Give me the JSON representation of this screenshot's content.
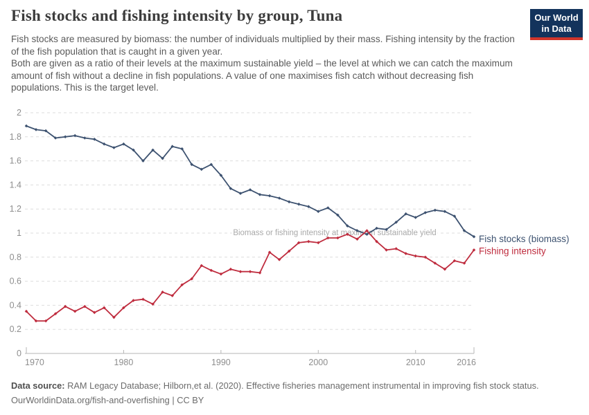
{
  "header": {
    "title": "Fish stocks and fishing intensity by group, Tuna",
    "subtitle_p1": "Fish stocks are measured by biomass: the number of individuals multiplied by their mass. Fishing intensity by the fraction of the fish population that is caught in a given year.",
    "subtitle_p2": "Both are given as a ratio of their levels at the maximum sustainable yield – the level at which we can catch the maximum amount of fish without a decline in fish populations. A value of one maximises fish catch without decreasing fish populations. This is the target level.",
    "logo_line1": "Our World",
    "logo_line2": "in Data",
    "logo_bg_color": "#13335c",
    "logo_accent_color": "#d0352b"
  },
  "chart_data": {
    "type": "line",
    "title": "Fish stocks and fishing intensity by group, Tuna",
    "xlabel": "",
    "ylabel": "",
    "xlim": [
      1970,
      2016
    ],
    "ylim": [
      0,
      2
    ],
    "xticks": [
      1970,
      1980,
      1990,
      2000,
      2010,
      2016
    ],
    "yticks": [
      0,
      0.2,
      0.4,
      0.6,
      0.8,
      1,
      1.2,
      1.4,
      1.6,
      1.8,
      2
    ],
    "grid": "dashed horizontal",
    "legend_position": "right end of lines",
    "annotation": "Biomass or fishing intensity at maximum sustainable yield",
    "annotation_value": 1,
    "x": [
      1970,
      1971,
      1972,
      1973,
      1974,
      1975,
      1976,
      1977,
      1978,
      1979,
      1980,
      1981,
      1982,
      1983,
      1984,
      1985,
      1986,
      1987,
      1988,
      1989,
      1990,
      1991,
      1992,
      1993,
      1994,
      1995,
      1996,
      1997,
      1998,
      1999,
      2000,
      2001,
      2002,
      2003,
      2004,
      2005,
      2006,
      2007,
      2008,
      2009,
      2010,
      2011,
      2012,
      2013,
      2014,
      2015,
      2016
    ],
    "series": [
      {
        "name": "Fish stocks (biomass)",
        "color": "#3d5270",
        "values": [
          1.89,
          1.86,
          1.85,
          1.79,
          1.8,
          1.81,
          1.79,
          1.78,
          1.74,
          1.71,
          1.74,
          1.69,
          1.6,
          1.69,
          1.62,
          1.72,
          1.7,
          1.57,
          1.53,
          1.57,
          1.48,
          1.37,
          1.33,
          1.36,
          1.32,
          1.31,
          1.29,
          1.26,
          1.24,
          1.22,
          1.18,
          1.21,
          1.15,
          1.06,
          1.02,
          0.99,
          1.04,
          1.03,
          1.09,
          1.16,
          1.13,
          1.17,
          1.19,
          1.18,
          1.14,
          1.02,
          0.97
        ]
      },
      {
        "name": "Fishing intensity",
        "color": "#bf2c3e",
        "values": [
          0.35,
          0.27,
          0.27,
          0.33,
          0.39,
          0.35,
          0.39,
          0.34,
          0.38,
          0.3,
          0.38,
          0.44,
          0.45,
          0.41,
          0.51,
          0.48,
          0.57,
          0.62,
          0.73,
          0.69,
          0.66,
          0.7,
          0.68,
          0.68,
          0.67,
          0.84,
          0.78,
          0.85,
          0.92,
          0.93,
          0.92,
          0.96,
          0.96,
          0.99,
          0.95,
          1.02,
          0.93,
          0.86,
          0.87,
          0.83,
          0.81,
          0.8,
          0.75,
          0.7,
          0.77,
          0.75,
          0.86
        ]
      }
    ]
  },
  "footer": {
    "source_label": "Data source:",
    "source_text": " RAM Legacy Database; Hilborn,et al. (2020). Effective fisheries management instrumental in improving fish stock status.",
    "link_line": "OurWorldinData.org/fish-and-overfishing | CC BY"
  }
}
